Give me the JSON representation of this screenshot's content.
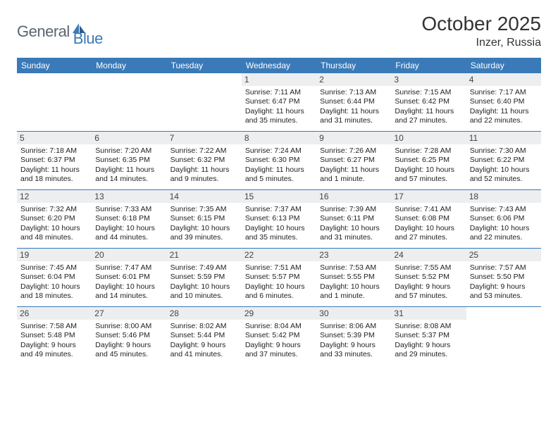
{
  "brand": {
    "general": "General",
    "blue": "Blue"
  },
  "title": "October 2025",
  "location": "Inzer, Russia",
  "colors": {
    "header_bg": "#3a7ab8",
    "daynum_bg": "#eceef0",
    "rule": "#3a7ab8",
    "text": "#222222",
    "logo_gray": "#5a6670",
    "logo_blue": "#3a7ab8"
  },
  "typography": {
    "title_fontsize": 28,
    "location_fontsize": 16,
    "weekday_fontsize": 12,
    "daynum_fontsize": 12,
    "body_fontsize": 10.5
  },
  "weekdays": [
    "Sunday",
    "Monday",
    "Tuesday",
    "Wednesday",
    "Thursday",
    "Friday",
    "Saturday"
  ],
  "labels": {
    "sunrise": "Sunrise:",
    "sunset": "Sunset:",
    "daylight": "Daylight:"
  },
  "days": [
    {
      "n": 1,
      "dow": 3,
      "sr": "7:11 AM",
      "ss": "6:47 PM",
      "dl": "11 hours and 35 minutes."
    },
    {
      "n": 2,
      "dow": 4,
      "sr": "7:13 AM",
      "ss": "6:44 PM",
      "dl": "11 hours and 31 minutes."
    },
    {
      "n": 3,
      "dow": 5,
      "sr": "7:15 AM",
      "ss": "6:42 PM",
      "dl": "11 hours and 27 minutes."
    },
    {
      "n": 4,
      "dow": 6,
      "sr": "7:17 AM",
      "ss": "6:40 PM",
      "dl": "11 hours and 22 minutes."
    },
    {
      "n": 5,
      "dow": 0,
      "sr": "7:18 AM",
      "ss": "6:37 PM",
      "dl": "11 hours and 18 minutes."
    },
    {
      "n": 6,
      "dow": 1,
      "sr": "7:20 AM",
      "ss": "6:35 PM",
      "dl": "11 hours and 14 minutes."
    },
    {
      "n": 7,
      "dow": 2,
      "sr": "7:22 AM",
      "ss": "6:32 PM",
      "dl": "11 hours and 9 minutes."
    },
    {
      "n": 8,
      "dow": 3,
      "sr": "7:24 AM",
      "ss": "6:30 PM",
      "dl": "11 hours and 5 minutes."
    },
    {
      "n": 9,
      "dow": 4,
      "sr": "7:26 AM",
      "ss": "6:27 PM",
      "dl": "11 hours and 1 minute."
    },
    {
      "n": 10,
      "dow": 5,
      "sr": "7:28 AM",
      "ss": "6:25 PM",
      "dl": "10 hours and 57 minutes."
    },
    {
      "n": 11,
      "dow": 6,
      "sr": "7:30 AM",
      "ss": "6:22 PM",
      "dl": "10 hours and 52 minutes."
    },
    {
      "n": 12,
      "dow": 0,
      "sr": "7:32 AM",
      "ss": "6:20 PM",
      "dl": "10 hours and 48 minutes."
    },
    {
      "n": 13,
      "dow": 1,
      "sr": "7:33 AM",
      "ss": "6:18 PM",
      "dl": "10 hours and 44 minutes."
    },
    {
      "n": 14,
      "dow": 2,
      "sr": "7:35 AM",
      "ss": "6:15 PM",
      "dl": "10 hours and 39 minutes."
    },
    {
      "n": 15,
      "dow": 3,
      "sr": "7:37 AM",
      "ss": "6:13 PM",
      "dl": "10 hours and 35 minutes."
    },
    {
      "n": 16,
      "dow": 4,
      "sr": "7:39 AM",
      "ss": "6:11 PM",
      "dl": "10 hours and 31 minutes."
    },
    {
      "n": 17,
      "dow": 5,
      "sr": "7:41 AM",
      "ss": "6:08 PM",
      "dl": "10 hours and 27 minutes."
    },
    {
      "n": 18,
      "dow": 6,
      "sr": "7:43 AM",
      "ss": "6:06 PM",
      "dl": "10 hours and 22 minutes."
    },
    {
      "n": 19,
      "dow": 0,
      "sr": "7:45 AM",
      "ss": "6:04 PM",
      "dl": "10 hours and 18 minutes."
    },
    {
      "n": 20,
      "dow": 1,
      "sr": "7:47 AM",
      "ss": "6:01 PM",
      "dl": "10 hours and 14 minutes."
    },
    {
      "n": 21,
      "dow": 2,
      "sr": "7:49 AM",
      "ss": "5:59 PM",
      "dl": "10 hours and 10 minutes."
    },
    {
      "n": 22,
      "dow": 3,
      "sr": "7:51 AM",
      "ss": "5:57 PM",
      "dl": "10 hours and 6 minutes."
    },
    {
      "n": 23,
      "dow": 4,
      "sr": "7:53 AM",
      "ss": "5:55 PM",
      "dl": "10 hours and 1 minute."
    },
    {
      "n": 24,
      "dow": 5,
      "sr": "7:55 AM",
      "ss": "5:52 PM",
      "dl": "9 hours and 57 minutes."
    },
    {
      "n": 25,
      "dow": 6,
      "sr": "7:57 AM",
      "ss": "5:50 PM",
      "dl": "9 hours and 53 minutes."
    },
    {
      "n": 26,
      "dow": 0,
      "sr": "7:58 AM",
      "ss": "5:48 PM",
      "dl": "9 hours and 49 minutes."
    },
    {
      "n": 27,
      "dow": 1,
      "sr": "8:00 AM",
      "ss": "5:46 PM",
      "dl": "9 hours and 45 minutes."
    },
    {
      "n": 28,
      "dow": 2,
      "sr": "8:02 AM",
      "ss": "5:44 PM",
      "dl": "9 hours and 41 minutes."
    },
    {
      "n": 29,
      "dow": 3,
      "sr": "8:04 AM",
      "ss": "5:42 PM",
      "dl": "9 hours and 37 minutes."
    },
    {
      "n": 30,
      "dow": 4,
      "sr": "8:06 AM",
      "ss": "5:39 PM",
      "dl": "9 hours and 33 minutes."
    },
    {
      "n": 31,
      "dow": 5,
      "sr": "8:08 AM",
      "ss": "5:37 PM",
      "dl": "9 hours and 29 minutes."
    }
  ]
}
